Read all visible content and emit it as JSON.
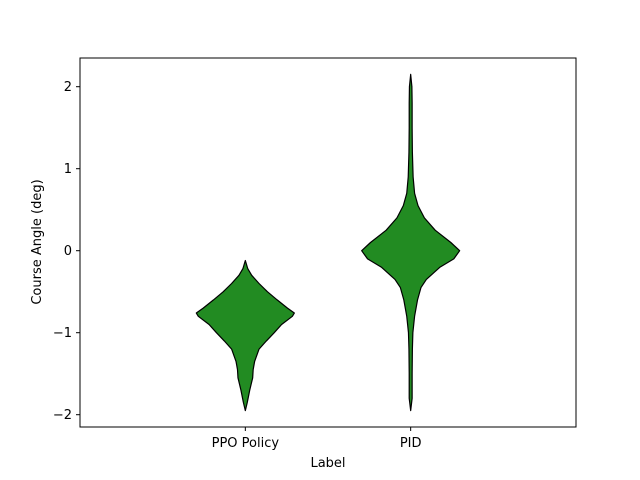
{
  "chart_data": {
    "type": "violin",
    "title": "",
    "xlabel": "Label",
    "ylabel": "Course Angle (deg)",
    "categories": [
      "PPO Policy",
      "PID"
    ],
    "ylim": [
      -2.15,
      2.35
    ],
    "yticks": [
      -2,
      -1,
      0,
      1,
      2
    ],
    "ytick_labels": [
      "−2",
      "−1",
      "0",
      "1",
      "2"
    ],
    "fill_color": "#228b22",
    "edge_color": "#000000",
    "violins": [
      {
        "category": "PPO Policy",
        "min": -1.95,
        "max": -0.12,
        "profile": [
          [
            -1.95,
            0.0
          ],
          [
            -1.85,
            0.04
          ],
          [
            -1.7,
            0.09
          ],
          [
            -1.55,
            0.15
          ],
          [
            -1.45,
            0.16
          ],
          [
            -1.35,
            0.19
          ],
          [
            -1.2,
            0.28
          ],
          [
            -1.1,
            0.43
          ],
          [
            -1.0,
            0.59
          ],
          [
            -0.9,
            0.74
          ],
          [
            -0.8,
            0.96
          ],
          [
            -0.76,
            1.0
          ],
          [
            -0.7,
            0.86
          ],
          [
            -0.6,
            0.65
          ],
          [
            -0.5,
            0.45
          ],
          [
            -0.4,
            0.28
          ],
          [
            -0.3,
            0.13
          ],
          [
            -0.22,
            0.05
          ],
          [
            -0.16,
            0.02
          ],
          [
            -0.12,
            0.0
          ]
        ]
      },
      {
        "category": "PID",
        "min": -1.95,
        "max": 2.15,
        "profile": [
          [
            -1.95,
            0.0
          ],
          [
            -1.8,
            0.03
          ],
          [
            -1.5,
            0.03
          ],
          [
            -1.2,
            0.035
          ],
          [
            -1.0,
            0.045
          ],
          [
            -0.8,
            0.08
          ],
          [
            -0.6,
            0.14
          ],
          [
            -0.45,
            0.21
          ],
          [
            -0.35,
            0.32
          ],
          [
            -0.2,
            0.6
          ],
          [
            -0.1,
            0.88
          ],
          [
            0.0,
            1.0
          ],
          [
            0.1,
            0.82
          ],
          [
            0.25,
            0.5
          ],
          [
            0.4,
            0.28
          ],
          [
            0.55,
            0.15
          ],
          [
            0.7,
            0.08
          ],
          [
            0.9,
            0.05
          ],
          [
            1.2,
            0.035
          ],
          [
            1.5,
            0.03
          ],
          [
            1.8,
            0.03
          ],
          [
            2.0,
            0.025
          ],
          [
            2.15,
            0.0
          ]
        ]
      }
    ]
  }
}
